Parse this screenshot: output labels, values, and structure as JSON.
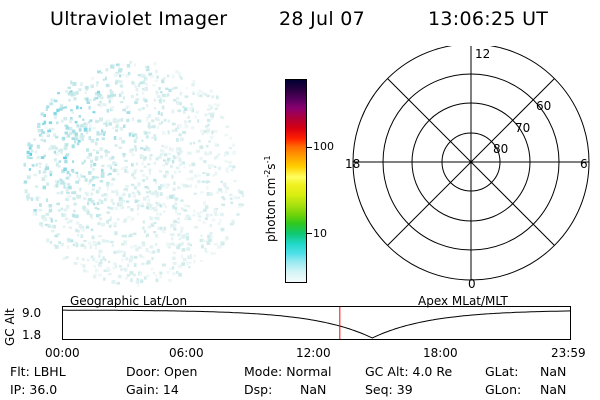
{
  "header": {
    "title": "Ultraviolet Imager",
    "date": "28 Jul 07",
    "time": "13:06:25 UT"
  },
  "colorbar": {
    "label": "photon cm",
    "label_sup1": "-2",
    "label_mid": "s",
    "label_sup2": "-1",
    "ticks": [
      "100",
      "10"
    ],
    "colors": [
      "#000033",
      "#2a0040",
      "#5a0060",
      "#8a0070",
      "#b0003a",
      "#d80010",
      "#ff2000",
      "#ff6a00",
      "#ff9f00",
      "#ffd000",
      "#ffff60",
      "#f0f020",
      "#d8ee10",
      "#a8e010",
      "#6cd20a",
      "#30c81e",
      "#10c870",
      "#20d8c8",
      "#50e0e8",
      "#98eaf0",
      "#d4f4f6",
      "#f4fbfb"
    ]
  },
  "polar": {
    "labels": {
      "top": "12",
      "bottom": "0",
      "left": "18",
      "right": "6",
      "lat60": "60",
      "lat70": "70",
      "lat80": "80"
    }
  },
  "timeline": {
    "left_label": "Geographic Lat/Lon",
    "right_label": "Apex MLat/MLT",
    "axis_title": "GC Alt",
    "y_top": "9.0",
    "y_bottom": "1.8",
    "x_ticks": [
      "00:00",
      "06:00",
      "12:00",
      "18:00",
      "23:59"
    ],
    "current_time_fraction": 0.546,
    "marker_color": "#ff0000"
  },
  "info": {
    "row1": {
      "flt": "Flt: LBHL",
      "door": "Door: Open",
      "mode": "Mode: Normal",
      "gcalt": "GC Alt: 4.0 Re",
      "glat_label": "GLat:",
      "glat_value": "NaN"
    },
    "row2": {
      "ip": "IP: 36.0",
      "gain": "Gain: 14",
      "dsp_label": "Dsp:",
      "dsp_value": "NaN",
      "seq": "Seq: 39",
      "glon_label": "GLon:",
      "glon_value": "NaN"
    }
  }
}
